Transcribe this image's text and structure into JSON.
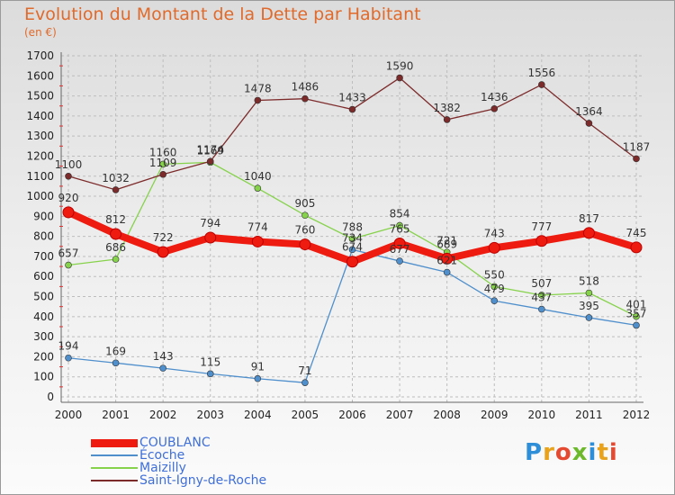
{
  "title": "Evolution du Montant de la Dette par Habitant",
  "subtitle": "(en €)",
  "logo": {
    "letters": [
      "P",
      "r",
      "o",
      "x",
      "i",
      "t",
      "i"
    ],
    "colors": [
      "#2e8fd8",
      "#e8a21c",
      "#e5492f",
      "#6cba2c",
      "#2e8fd8",
      "#e8a21c",
      "#e5492f"
    ]
  },
  "chart_data": {
    "type": "line",
    "title": "Evolution du Montant de la Dette par Habitant",
    "ylabel": "(en €)",
    "xlabel": "",
    "categories": [
      "2000",
      "2001",
      "2002",
      "2003",
      "2004",
      "2005",
      "2006",
      "2007",
      "2008",
      "2009",
      "2010",
      "2011",
      "2012"
    ],
    "ylim": [
      0,
      1700
    ],
    "yticks": [
      "0",
      "100",
      "200",
      "300",
      "400",
      "500",
      "600",
      "700",
      "800",
      "900",
      "1000",
      "1100",
      "1200",
      "1300",
      "1400",
      "1500",
      "1600",
      "1700"
    ],
    "grid": true,
    "legend_position": "bottom-left",
    "series": [
      {
        "name": "COUBLANC",
        "color": "#ee1c10",
        "width": 8,
        "marker": 6,
        "values": [
          920,
          812,
          722,
          794,
          774,
          760,
          674,
          765,
          689,
          743,
          777,
          817,
          745
        ],
        "labels": [
          "920",
          "812",
          "722",
          "794",
          "774",
          "760",
          "674",
          "765",
          "689",
          "743",
          "777",
          "817",
          "745"
        ]
      },
      {
        "name": "Écoche",
        "color": "#4f8fcc",
        "width": 1.3,
        "marker": 3.5,
        "values": [
          194,
          169,
          143,
          115,
          91,
          71,
          734,
          677,
          621,
          479,
          437,
          395,
          357
        ],
        "labels": [
          "194",
          "169",
          "143",
          "115",
          "91",
          "71",
          "734",
          "677",
          "621",
          "479",
          "437",
          "395",
          "357"
        ]
      },
      {
        "name": "Maizilly",
        "color": "#86d24b",
        "width": 1.3,
        "marker": 3.5,
        "values": [
          657,
          686,
          1160,
          1169,
          1040,
          905,
          788,
          854,
          721,
          550,
          507,
          518,
          401
        ],
        "labels": [
          "657",
          "686",
          "1160",
          "1169",
          "1040",
          "905",
          "788",
          "854",
          "721",
          "550",
          "507",
          "518",
          "401"
        ]
      },
      {
        "name": "Saint-Igny-de-Roche",
        "color": "#7d2a2a",
        "width": 1.3,
        "marker": 3.5,
        "values": [
          1100,
          1032,
          1109,
          1174,
          1478,
          1486,
          1433,
          1590,
          1382,
          1436,
          1556,
          1364,
          1187
        ],
        "labels": [
          "1100",
          "1032",
          "1109",
          "1174",
          "1478",
          "1486",
          "1433",
          "1590",
          "1382",
          "1436",
          "1556",
          "1364",
          "1187"
        ]
      }
    ]
  }
}
